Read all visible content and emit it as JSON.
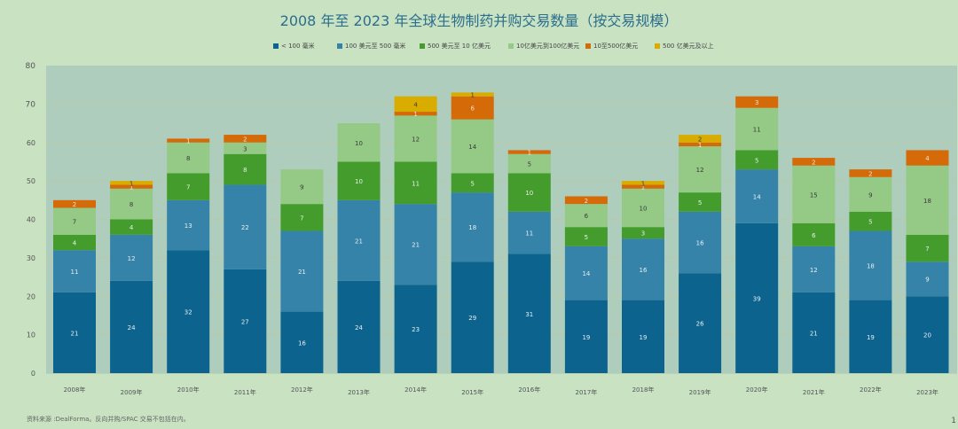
{
  "chart_data": {
    "type": "bar",
    "stacked": true,
    "title": "2008 年至 2023 年全球生物制药并购交易数量（按交易规模）",
    "xlabel": "",
    "ylabel": "",
    "ylim": [
      0,
      80
    ],
    "yticks": [
      0,
      10,
      20,
      30,
      40,
      50,
      60,
      70,
      80
    ],
    "grid": true,
    "legend_position": "top",
    "categories": [
      "2008年",
      "2009年",
      "2010年",
      "2011年",
      "2012年",
      "2013年",
      "2014年",
      "2015年",
      "2016年",
      "2017年",
      "2018年",
      "2019年",
      "2020年",
      "2021年",
      "2022年",
      "2023年"
    ],
    "series": [
      {
        "name": "< 100 毫米",
        "color": "#0b638e",
        "label_color": "#e8eef2",
        "values": [
          21,
          24,
          32,
          27,
          16,
          24,
          23,
          29,
          31,
          19,
          19,
          26,
          39,
          21,
          19,
          20
        ]
      },
      {
        "name": "100 美元至 500 毫米",
        "color": "#3583a8",
        "label_color": "#e8eef2",
        "values": [
          11,
          12,
          13,
          22,
          21,
          21,
          21,
          18,
          11,
          14,
          16,
          16,
          14,
          12,
          18,
          9
        ]
      },
      {
        "name": "500 美元至 10 亿美元",
        "color": "#439c2b",
        "label_color": "#e8eef2",
        "values": [
          4,
          4,
          7,
          8,
          7,
          10,
          11,
          5,
          10,
          5,
          3,
          5,
          5,
          6,
          5,
          7
        ]
      },
      {
        "name": "10亿美元到100亿美元",
        "color": "#95c986",
        "label_color": "#3a3a3a",
        "values": [
          7,
          8,
          8,
          3,
          9,
          10,
          12,
          14,
          5,
          6,
          10,
          12,
          11,
          15,
          9,
          18
        ]
      },
      {
        "name": "10至500亿美元",
        "color": "#d46a08",
        "label_color": "#f3e4d6",
        "values": [
          2,
          1,
          1,
          2,
          0,
          0,
          1,
          6,
          1,
          2,
          1,
          1,
          3,
          2,
          2,
          4
        ]
      },
      {
        "name": "500 亿美元及以上",
        "color": "#d8ad00",
        "label_color": "#3a3a3a",
        "values": [
          0,
          1,
          0,
          0,
          0,
          0,
          4,
          1,
          0,
          0,
          1,
          2,
          0,
          0,
          0,
          0
        ]
      }
    ]
  },
  "footnote": "资料来源 :DealForma。反向并购/SPAC 交易不包括在内。",
  "page_marker": "1"
}
